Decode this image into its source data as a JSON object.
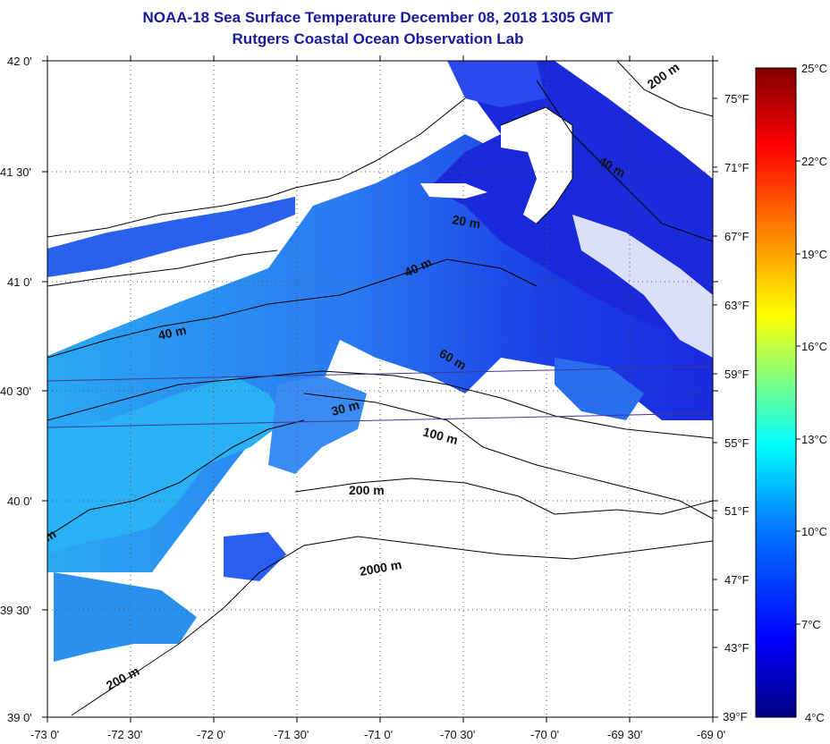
{
  "title": {
    "line1": "NOAA-18 Sea Surface Temperature December 08, 2018 1305 GMT",
    "line2": "Rutgers Coastal Ocean Observation Lab"
  },
  "map": {
    "lat_ticks": [
      "42 0'",
      "41 30'",
      "41 0'",
      "40 30'",
      "40 0'",
      "39 30'",
      "39 0'"
    ],
    "lon_ticks": [
      "-73 0'",
      "-72 30'",
      "-72 0'",
      "-71 30'",
      "-71 0'",
      "-70 30'",
      "-70 0'",
      "-69 30'",
      "-69 0'"
    ],
    "contour_labels": [
      "200 m",
      "40 m",
      "20 m",
      "40 m",
      "40 m",
      "60 m",
      "30 m",
      "100 m",
      "200 m",
      "2000 m",
      "200 m",
      "m"
    ],
    "colors": {
      "land": "#ffffff",
      "water_deep": "#1a2adf",
      "water_mid": "#2a6ef0",
      "water_light": "#2aa0f0",
      "coast": "#000000"
    }
  },
  "colorbar": {
    "celsius": [
      "25°C",
      "22°C",
      "19°C",
      "16°C",
      "13°C",
      "10°C",
      "7°C",
      "4°C"
    ],
    "fahrenheit": [
      "75°F",
      "71°F",
      "67°F",
      "63°F",
      "59°F",
      "55°F",
      "51°F",
      "47°F",
      "43°F",
      "39°F"
    ],
    "range_c": [
      4,
      25
    ],
    "colors": [
      "#000080",
      "#0000ff",
      "#0080ff",
      "#00ffff",
      "#80ff80",
      "#ffff00",
      "#ff8000",
      "#ff0000",
      "#800000"
    ]
  }
}
